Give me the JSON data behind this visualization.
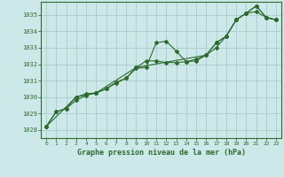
{
  "title": "Graphe pression niveau de la mer (hPa)",
  "bg_color": "#cce8e8",
  "grid_color": "#aacccc",
  "line_color": "#2d6a2d",
  "xlim": [
    -0.5,
    23.5
  ],
  "ylim": [
    1027.5,
    1035.8
  ],
  "yticks": [
    1028,
    1029,
    1030,
    1031,
    1032,
    1033,
    1034,
    1035
  ],
  "xticks": [
    0,
    1,
    2,
    3,
    4,
    5,
    6,
    7,
    8,
    9,
    10,
    11,
    12,
    13,
    14,
    15,
    16,
    17,
    18,
    19,
    20,
    21,
    22,
    23
  ],
  "series1": {
    "x": [
      0,
      1,
      2,
      3,
      4,
      5,
      6,
      7,
      8,
      9,
      10,
      11,
      12,
      13,
      14,
      15,
      16,
      17,
      18,
      19,
      20,
      21,
      22,
      23
    ],
    "y": [
      1028.2,
      1029.1,
      1029.3,
      1029.8,
      1030.1,
      1030.25,
      1030.5,
      1030.85,
      1031.15,
      1031.75,
      1031.8,
      1033.3,
      1033.4,
      1032.8,
      1032.15,
      1032.2,
      1032.55,
      1033.0,
      1033.7,
      1034.7,
      1035.1,
      1035.2,
      1034.85,
      1034.7
    ]
  },
  "series2": {
    "x": [
      0,
      1,
      2,
      3,
      4,
      5,
      6,
      7,
      8,
      9,
      10,
      11,
      12,
      13,
      14,
      15,
      16,
      17,
      18,
      19,
      20,
      21,
      22,
      23
    ],
    "y": [
      1028.2,
      1029.1,
      1029.3,
      1030.0,
      1030.2,
      1030.25,
      1030.5,
      1030.9,
      1031.15,
      1031.8,
      1032.2,
      1032.2,
      1032.1,
      1032.1,
      1032.15,
      1032.3,
      1032.55,
      1033.3,
      1033.7,
      1034.7,
      1035.1,
      1035.55,
      1034.85,
      1034.7
    ]
  },
  "series3": {
    "x": [
      0,
      3,
      5,
      9,
      16,
      17,
      18,
      19,
      20,
      21,
      22,
      23
    ],
    "y": [
      1028.2,
      1030.0,
      1030.25,
      1031.8,
      1032.55,
      1033.3,
      1033.7,
      1034.7,
      1035.1,
      1035.55,
      1034.85,
      1034.7
    ]
  }
}
